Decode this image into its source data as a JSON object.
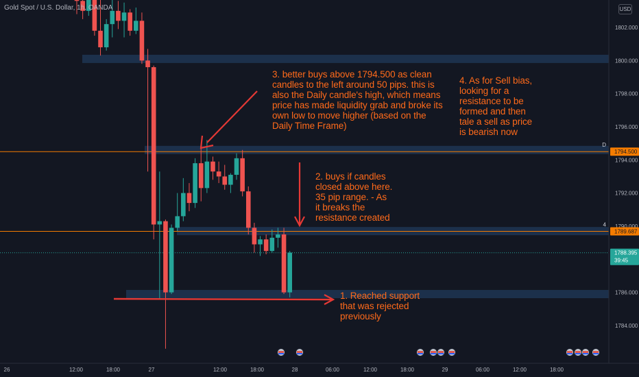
{
  "chart_title": "Gold Spot / U.S. Dollar, 1h, OANDA",
  "currency": "USD",
  "colors": {
    "background": "#131722",
    "up": "#26a69a",
    "down": "#ef5350",
    "annotation": "#ff6a1a",
    "zone": "#1e3350",
    "axis_text": "#b2b5be",
    "line_orange": "#f57c00"
  },
  "chart_data": {
    "type": "candlestick",
    "ylim": [
      1782.5,
      1803.5
    ],
    "y_ticks": [
      "1802.000",
      "1800.000",
      "1798.000",
      "1796.000",
      "1794.000",
      "1792.000",
      "1790.000",
      "1788.000",
      "1786.000",
      "1784.000"
    ],
    "x_ticks": [
      "26",
      "12:00",
      "18:00",
      "27",
      "12:00",
      "18:00",
      "28",
      "06:00",
      "12:00",
      "18:00",
      "29",
      "06:00",
      "12:00",
      "18:00"
    ],
    "candles": [
      {
        "o": 1804.2,
        "h": 1805.5,
        "l": 1802.8,
        "c": 1803.6
      },
      {
        "o": 1803.6,
        "h": 1804.8,
        "l": 1802.5,
        "c": 1803.0
      },
      {
        "o": 1803.0,
        "h": 1804.4,
        "l": 1802.7,
        "c": 1803.8
      },
      {
        "o": 1803.8,
        "h": 1805.0,
        "l": 1801.5,
        "c": 1801.8
      },
      {
        "o": 1801.8,
        "h": 1805.5,
        "l": 1800.3,
        "c": 1800.8
      },
      {
        "o": 1800.8,
        "h": 1802.5,
        "l": 1800.6,
        "c": 1802.2
      },
      {
        "o": 1802.2,
        "h": 1804.0,
        "l": 1801.4,
        "c": 1803.0
      },
      {
        "o": 1803.0,
        "h": 1803.6,
        "l": 1801.9,
        "c": 1802.4
      },
      {
        "o": 1802.4,
        "h": 1803.5,
        "l": 1801.4,
        "c": 1802.9
      },
      {
        "o": 1802.9,
        "h": 1803.1,
        "l": 1801.5,
        "c": 1801.8
      },
      {
        "o": 1801.8,
        "h": 1803.2,
        "l": 1801.6,
        "c": 1802.4
      },
      {
        "o": 1802.4,
        "h": 1802.9,
        "l": 1799.8,
        "c": 1800.0
      },
      {
        "o": 1800.0,
        "h": 1800.7,
        "l": 1793.3,
        "c": 1799.6
      },
      {
        "o": 1799.6,
        "h": 1799.7,
        "l": 1789.2,
        "c": 1790.1
      },
      {
        "o": 1790.1,
        "h": 1793.3,
        "l": 1785.6,
        "c": 1790.3
      },
      {
        "o": 1790.3,
        "h": 1790.4,
        "l": 1782.6,
        "c": 1786.0
      },
      {
        "o": 1786.0,
        "h": 1790.1,
        "l": 1785.9,
        "c": 1789.9
      },
      {
        "o": 1789.9,
        "h": 1792.0,
        "l": 1789.7,
        "c": 1790.6
      },
      {
        "o": 1790.6,
        "h": 1792.9,
        "l": 1790.3,
        "c": 1792.0
      },
      {
        "o": 1792.0,
        "h": 1792.6,
        "l": 1790.9,
        "c": 1791.4
      },
      {
        "o": 1791.4,
        "h": 1794.1,
        "l": 1791.1,
        "c": 1793.8
      },
      {
        "o": 1793.8,
        "h": 1794.7,
        "l": 1791.5,
        "c": 1792.3
      },
      {
        "o": 1792.3,
        "h": 1795.2,
        "l": 1792.0,
        "c": 1793.9
      },
      {
        "o": 1793.9,
        "h": 1794.2,
        "l": 1792.8,
        "c": 1793.3
      },
      {
        "o": 1793.3,
        "h": 1793.9,
        "l": 1792.6,
        "c": 1793.0
      },
      {
        "o": 1793.0,
        "h": 1793.7,
        "l": 1792.2,
        "c": 1792.5
      },
      {
        "o": 1792.5,
        "h": 1793.2,
        "l": 1792.0,
        "c": 1793.1
      },
      {
        "o": 1793.1,
        "h": 1794.4,
        "l": 1792.8,
        "c": 1794.1
      },
      {
        "o": 1794.1,
        "h": 1794.6,
        "l": 1791.8,
        "c": 1792.1
      },
      {
        "o": 1792.1,
        "h": 1792.4,
        "l": 1789.5,
        "c": 1789.9
      },
      {
        "o": 1789.9,
        "h": 1790.2,
        "l": 1788.4,
        "c": 1788.9
      },
      {
        "o": 1788.9,
        "h": 1789.4,
        "l": 1788.2,
        "c": 1789.2
      },
      {
        "o": 1789.2,
        "h": 1789.5,
        "l": 1788.3,
        "c": 1788.5
      },
      {
        "o": 1788.5,
        "h": 1789.8,
        "l": 1788.4,
        "c": 1789.3
      },
      {
        "o": 1789.3,
        "h": 1789.9,
        "l": 1788.7,
        "c": 1789.5
      },
      {
        "o": 1789.5,
        "h": 1789.9,
        "l": 1785.9,
        "c": 1786.0
      },
      {
        "o": 1786.0,
        "h": 1788.5,
        "l": 1785.7,
        "c": 1788.4
      }
    ],
    "zones": [
      {
        "price": 1800.1
      },
      {
        "price": 1794.6
      },
      {
        "price": 1789.7
      },
      {
        "price": 1785.9
      }
    ],
    "h_lines": [
      {
        "price": 1794.5,
        "label": "1794.500",
        "tag": "D"
      },
      {
        "price": 1789.687,
        "label": "1789.687",
        "tag": "4"
      }
    ],
    "current_price": {
      "price": 1788.395,
      "label": "1788.395",
      "countdown": "39:45"
    }
  },
  "annotations": [
    {
      "id": "ann-3",
      "lines": [
        "3. better buys above 1794.500 as clean",
        "candles to the left  around 50 pips. this is",
        "also the Daily candle's high, which means",
        "price has made liquidity grab and broke its",
        "own low to move higher (based on the",
        "Daily Time Frame)"
      ]
    },
    {
      "id": "ann-4",
      "lines": [
        "4. As for Sell bias,",
        "looking for a",
        "resistance to be",
        "formed and then",
        "tale a sell as price",
        "is bearish now"
      ]
    },
    {
      "id": "ann-2",
      "lines": [
        "2. buys if candles",
        "closed above here.",
        "35 pip range. - As",
        "it breaks the",
        "resistance created"
      ]
    },
    {
      "id": "ann-1",
      "lines": [
        "1. Reached support",
        "that was rejected",
        "previously"
      ]
    }
  ]
}
